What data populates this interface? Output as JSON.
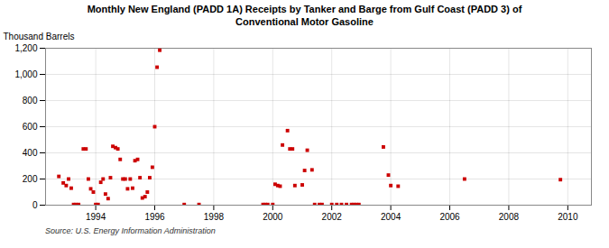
{
  "chart_data": {
    "type": "scatter",
    "title": "Monthly New England (PADD 1A) Receipts by Tanker and Barge from Gulf Coast (PADD 3) of\nConventional Motor Gasoline",
    "ylabel": "Thousand Barrels",
    "annotations": [
      "Source: U.S. Energy Information Administration"
    ],
    "color": "#cc0000",
    "marker": "square",
    "grid": true,
    "xlim": [
      1992.3,
      2010.8
    ],
    "ylim": [
      0,
      1200
    ],
    "xticks": [
      1994,
      1996,
      1998,
      2000,
      2002,
      2004,
      2006,
      2008,
      2010
    ],
    "yticks": [
      0,
      200,
      400,
      600,
      800,
      {
        "value": 1000,
        "label": "1,000"
      },
      {
        "value": 1200,
        "label": "1,200"
      }
    ],
    "x": [
      1992.75,
      1992.9,
      1993.0,
      1993.08,
      1993.17,
      1993.25,
      1993.33,
      1993.42,
      1993.58,
      1993.67,
      1993.75,
      1993.83,
      1993.92,
      1994.0,
      1994.08,
      1994.17,
      1994.25,
      1994.33,
      1994.42,
      1994.5,
      1994.58,
      1994.67,
      1994.75,
      1994.83,
      1994.92,
      1995.0,
      1995.08,
      1995.17,
      1995.25,
      1995.33,
      1995.42,
      1995.5,
      1995.58,
      1995.67,
      1995.75,
      1995.83,
      1995.92,
      1996.0,
      1996.08,
      1996.17,
      1997.0,
      1997.5,
      1999.67,
      1999.75,
      1999.83,
      2000.0,
      2000.08,
      2000.17,
      2000.25,
      2000.33,
      2000.5,
      2000.58,
      2000.67,
      2000.75,
      2001.0,
      2001.08,
      2001.17,
      2001.33,
      2001.42,
      2001.58,
      2001.67,
      2002.0,
      2002.17,
      2002.33,
      2002.5,
      2002.67,
      2002.75,
      2002.83,
      2002.92,
      2003.75,
      2003.92,
      2004.0,
      2004.25,
      2006.5,
      2009.75
    ],
    "values": [
      220,
      170,
      150,
      200,
      130,
      5,
      5,
      5,
      430,
      430,
      200,
      125,
      100,
      5,
      5,
      175,
      200,
      85,
      50,
      210,
      450,
      440,
      430,
      350,
      200,
      200,
      125,
      200,
      130,
      340,
      350,
      210,
      55,
      65,
      100,
      210,
      290,
      600,
      1055,
      1185,
      5,
      5,
      5,
      5,
      5,
      5,
      160,
      150,
      145,
      460,
      570,
      430,
      430,
      150,
      155,
      265,
      420,
      270,
      5,
      5,
      5,
      5,
      5,
      5,
      5,
      5,
      5,
      5,
      5,
      445,
      230,
      150,
      145,
      200,
      195
    ]
  }
}
